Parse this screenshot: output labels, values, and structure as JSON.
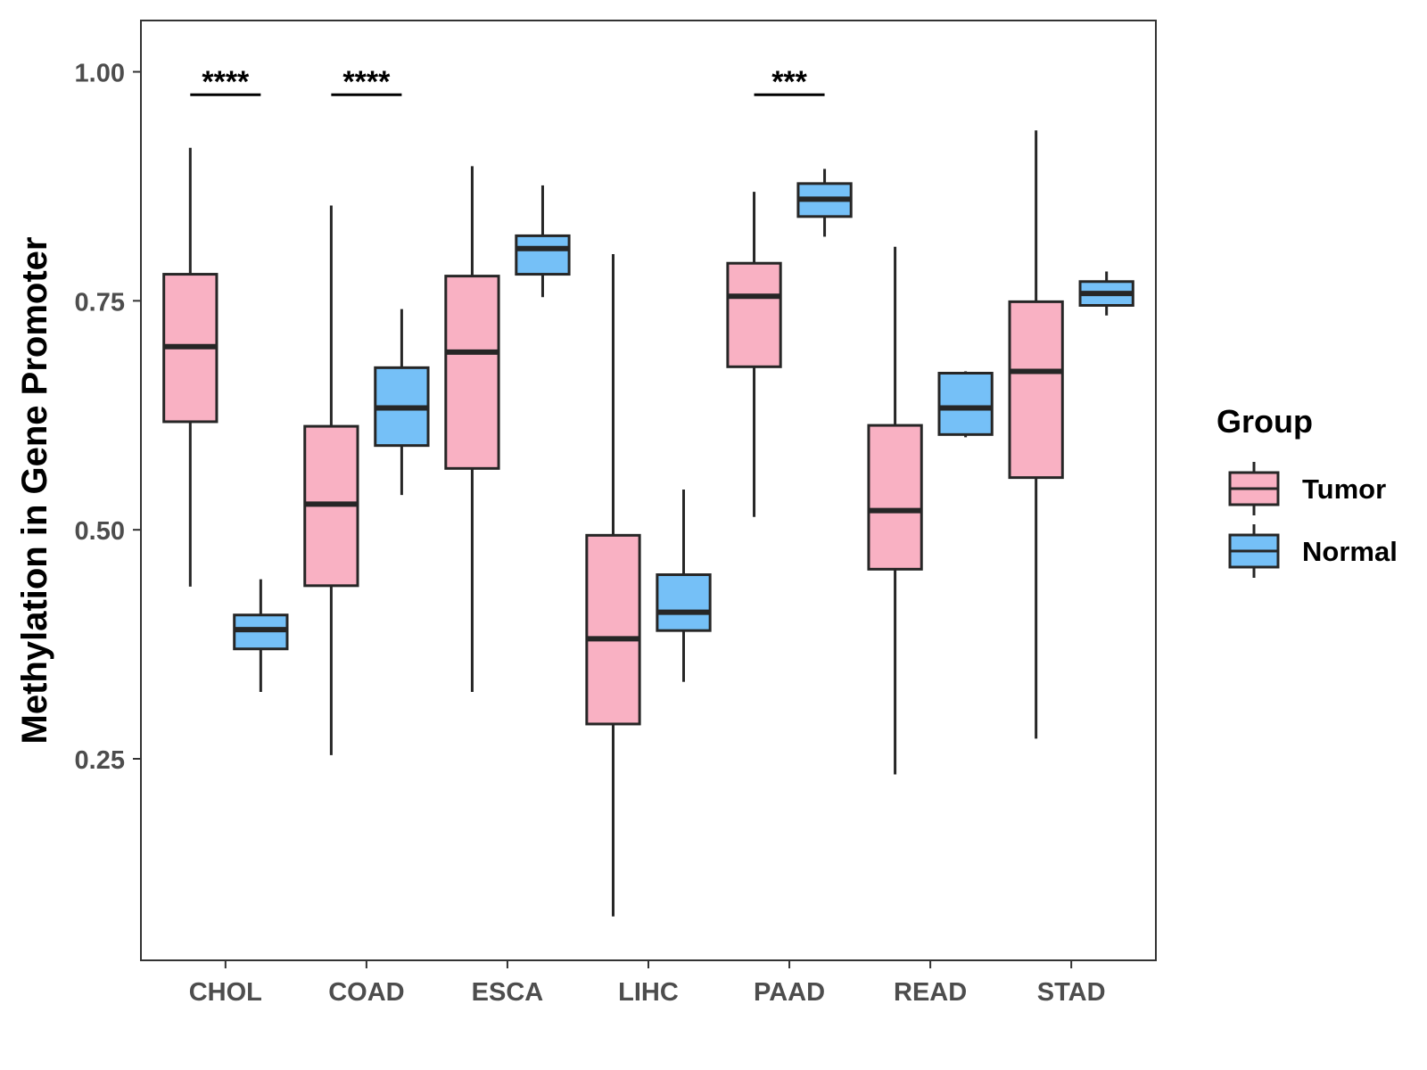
{
  "chart_data": {
    "type": "boxplot",
    "title": "",
    "xlabel": "",
    "ylabel": "Methylation in Gene Promoter",
    "ylim": [
      0.03,
      1.056
    ],
    "yticks": [
      0.25,
      0.5,
      0.75,
      1.0
    ],
    "ytick_labels": [
      "0.25",
      "0.50",
      "0.75",
      "1.00"
    ],
    "categories": [
      "CHOL",
      "COAD",
      "ESCA",
      "LIHC",
      "PAAD",
      "READ",
      "STAD"
    ],
    "series": [
      {
        "name": "Tumor",
        "color": "#f9b1c3",
        "boxes": [
          {
            "whisker_low": 0.438,
            "q1": 0.618,
            "median": 0.7,
            "q3": 0.779,
            "whisker_high": 0.917
          },
          {
            "whisker_low": 0.254,
            "q1": 0.439,
            "median": 0.528,
            "q3": 0.613,
            "whisker_high": 0.854
          },
          {
            "whisker_low": 0.323,
            "q1": 0.567,
            "median": 0.694,
            "q3": 0.777,
            "whisker_high": 0.897
          },
          {
            "whisker_low": 0.078,
            "q1": 0.288,
            "median": 0.381,
            "q3": 0.494,
            "whisker_high": 0.801
          },
          {
            "whisker_low": 0.514,
            "q1": 0.678,
            "median": 0.755,
            "q3": 0.791,
            "whisker_high": 0.869
          },
          {
            "whisker_low": 0.233,
            "q1": 0.457,
            "median": 0.521,
            "q3": 0.614,
            "whisker_high": 0.809
          },
          {
            "whisker_low": 0.272,
            "q1": 0.557,
            "median": 0.673,
            "q3": 0.749,
            "whisker_high": 0.936
          }
        ]
      },
      {
        "name": "Normal",
        "color": "#75c0f7",
        "boxes": [
          {
            "whisker_low": 0.323,
            "q1": 0.37,
            "median": 0.391,
            "q3": 0.407,
            "whisker_high": 0.446
          },
          {
            "whisker_low": 0.538,
            "q1": 0.592,
            "median": 0.633,
            "q3": 0.677,
            "whisker_high": 0.741
          },
          {
            "whisker_low": 0.754,
            "q1": 0.779,
            "median": 0.807,
            "q3": 0.821,
            "whisker_high": 0.876
          },
          {
            "whisker_low": 0.334,
            "q1": 0.39,
            "median": 0.41,
            "q3": 0.451,
            "whisker_high": 0.544
          },
          {
            "whisker_low": 0.82,
            "q1": 0.842,
            "median": 0.861,
            "q3": 0.878,
            "whisker_high": 0.894
          },
          {
            "whisker_low": 0.601,
            "q1": 0.604,
            "median": 0.633,
            "q3": 0.671,
            "whisker_high": 0.673
          },
          {
            "whisker_low": 0.734,
            "q1": 0.745,
            "median": 0.758,
            "q3": 0.771,
            "whisker_high": 0.782
          }
        ]
      }
    ],
    "significance": [
      {
        "category": "CHOL",
        "label": "****"
      },
      {
        "category": "COAD",
        "label": "****"
      },
      {
        "category": "PAAD",
        "label": "***"
      }
    ],
    "legend": {
      "title": "Group",
      "position": "right",
      "entries": [
        "Tumor",
        "Normal"
      ]
    }
  }
}
